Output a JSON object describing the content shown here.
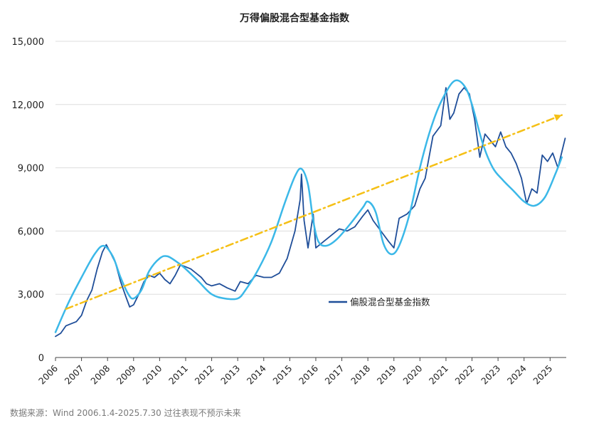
{
  "chart_data": {
    "type": "line",
    "title": "万得偏股混合型基金指数",
    "xlabel": "",
    "ylabel": "",
    "x_range": [
      2006.0,
      2025.62
    ],
    "ylim": [
      0,
      15000
    ],
    "y_ticks": [
      0,
      3000,
      6000,
      9000,
      12000,
      15000
    ],
    "y_tick_labels": [
      "0",
      "3,000",
      "6,000",
      "9,000",
      "12,000",
      "15,000"
    ],
    "x_ticks": [
      2006,
      2007,
      2008,
      2009,
      2010,
      2011,
      2012,
      2013,
      2014,
      2015,
      2016,
      2017,
      2018,
      2019,
      2020,
      2021,
      2022,
      2023,
      2024,
      2025
    ],
    "x_tick_labels": [
      "2006",
      "2007",
      "2008",
      "2009",
      "2010",
      "2011",
      "2012",
      "2013",
      "2014",
      "2015",
      "2016",
      "2017",
      "2018",
      "2019",
      "2020",
      "2021",
      "2022",
      "2023",
      "2024",
      "2025"
    ],
    "grid": "horizontal",
    "legend_position": "center-right",
    "series": [
      {
        "name": "偏股混合型基金指数",
        "color": "#1f4e99",
        "style": "solid",
        "points": [
          [
            2006.0,
            1000
          ],
          [
            2006.2,
            1150
          ],
          [
            2006.4,
            1500
          ],
          [
            2006.6,
            1600
          ],
          [
            2006.8,
            1700
          ],
          [
            2007.0,
            2000
          ],
          [
            2007.2,
            2700
          ],
          [
            2007.4,
            3200
          ],
          [
            2007.6,
            4200
          ],
          [
            2007.8,
            5000
          ],
          [
            2007.95,
            5350
          ],
          [
            2008.1,
            5000
          ],
          [
            2008.3,
            4500
          ],
          [
            2008.5,
            3600
          ],
          [
            2008.7,
            2900
          ],
          [
            2008.85,
            2400
          ],
          [
            2009.0,
            2500
          ],
          [
            2009.2,
            3000
          ],
          [
            2009.4,
            3600
          ],
          [
            2009.6,
            3900
          ],
          [
            2009.8,
            3800
          ],
          [
            2010.0,
            4000
          ],
          [
            2010.2,
            3700
          ],
          [
            2010.4,
            3500
          ],
          [
            2010.6,
            3900
          ],
          [
            2010.8,
            4400
          ],
          [
            2011.0,
            4300
          ],
          [
            2011.2,
            4200
          ],
          [
            2011.4,
            4000
          ],
          [
            2011.6,
            3800
          ],
          [
            2011.8,
            3500
          ],
          [
            2012.0,
            3400
          ],
          [
            2012.3,
            3500
          ],
          [
            2012.6,
            3300
          ],
          [
            2012.9,
            3150
          ],
          [
            2013.1,
            3600
          ],
          [
            2013.4,
            3500
          ],
          [
            2013.7,
            3900
          ],
          [
            2014.0,
            3800
          ],
          [
            2014.3,
            3800
          ],
          [
            2014.6,
            4000
          ],
          [
            2014.9,
            4700
          ],
          [
            2015.2,
            6000
          ],
          [
            2015.4,
            7500
          ],
          [
            2015.45,
            8700
          ],
          [
            2015.55,
            6500
          ],
          [
            2015.7,
            5200
          ],
          [
            2015.9,
            6800
          ],
          [
            2016.0,
            5200
          ],
          [
            2016.3,
            5500
          ],
          [
            2016.6,
            5800
          ],
          [
            2016.9,
            6100
          ],
          [
            2017.2,
            6000
          ],
          [
            2017.5,
            6200
          ],
          [
            2017.8,
            6700
          ],
          [
            2018.0,
            7000
          ],
          [
            2018.2,
            6500
          ],
          [
            2018.5,
            6000
          ],
          [
            2018.8,
            5500
          ],
          [
            2019.0,
            5200
          ],
          [
            2019.2,
            6600
          ],
          [
            2019.5,
            6800
          ],
          [
            2019.8,
            7200
          ],
          [
            2020.0,
            8000
          ],
          [
            2020.2,
            8500
          ],
          [
            2020.5,
            10500
          ],
          [
            2020.8,
            11000
          ],
          [
            2021.0,
            12800
          ],
          [
            2021.15,
            11300
          ],
          [
            2021.3,
            11600
          ],
          [
            2021.5,
            12500
          ],
          [
            2021.7,
            12800
          ],
          [
            2021.9,
            12500
          ],
          [
            2022.1,
            11300
          ],
          [
            2022.3,
            9500
          ],
          [
            2022.5,
            10600
          ],
          [
            2022.7,
            10300
          ],
          [
            2022.9,
            10000
          ],
          [
            2023.1,
            10700
          ],
          [
            2023.3,
            10000
          ],
          [
            2023.5,
            9700
          ],
          [
            2023.7,
            9200
          ],
          [
            2023.9,
            8500
          ],
          [
            2024.1,
            7300
          ],
          [
            2024.3,
            8000
          ],
          [
            2024.5,
            7800
          ],
          [
            2024.7,
            9600
          ],
          [
            2024.9,
            9300
          ],
          [
            2025.1,
            9700
          ],
          [
            2025.3,
            9000
          ],
          [
            2025.5,
            10000
          ],
          [
            2025.58,
            10400
          ]
        ]
      },
      {
        "name": "",
        "color": "#3bb8e8",
        "style": "solid-smooth",
        "points": [
          [
            2006.0,
            1200
          ],
          [
            2006.5,
            2600
          ],
          [
            2007.0,
            3800
          ],
          [
            2007.5,
            4900
          ],
          [
            2007.85,
            5300
          ],
          [
            2008.2,
            4800
          ],
          [
            2008.5,
            3800
          ],
          [
            2008.8,
            3000
          ],
          [
            2009.0,
            2800
          ],
          [
            2009.3,
            3200
          ],
          [
            2009.6,
            4100
          ],
          [
            2010.0,
            4700
          ],
          [
            2010.3,
            4800
          ],
          [
            2010.7,
            4500
          ],
          [
            2011.0,
            4200
          ],
          [
            2011.5,
            3600
          ],
          [
            2012.0,
            3000
          ],
          [
            2012.5,
            2800
          ],
          [
            2013.0,
            2800
          ],
          [
            2013.3,
            3200
          ],
          [
            2013.8,
            4200
          ],
          [
            2014.3,
            5500
          ],
          [
            2014.8,
            7300
          ],
          [
            2015.2,
            8600
          ],
          [
            2015.45,
            8950
          ],
          [
            2015.7,
            8200
          ],
          [
            2015.9,
            6500
          ],
          [
            2016.1,
            5500
          ],
          [
            2016.4,
            5300
          ],
          [
            2016.8,
            5600
          ],
          [
            2017.3,
            6300
          ],
          [
            2017.8,
            7100
          ],
          [
            2018.0,
            7400
          ],
          [
            2018.3,
            6900
          ],
          [
            2018.6,
            5400
          ],
          [
            2018.9,
            4900
          ],
          [
            2019.2,
            5300
          ],
          [
            2019.6,
            6800
          ],
          [
            2020.0,
            9000
          ],
          [
            2020.4,
            10800
          ],
          [
            2020.8,
            12100
          ],
          [
            2021.3,
            13100
          ],
          [
            2021.7,
            12900
          ],
          [
            2022.0,
            12000
          ],
          [
            2022.4,
            10200
          ],
          [
            2022.8,
            9000
          ],
          [
            2023.2,
            8400
          ],
          [
            2023.6,
            7900
          ],
          [
            2024.0,
            7400
          ],
          [
            2024.4,
            7200
          ],
          [
            2024.8,
            7600
          ],
          [
            2025.2,
            8700
          ],
          [
            2025.45,
            9500
          ]
        ]
      },
      {
        "name": "",
        "color": "#f5c016",
        "style": "dash-dot",
        "points": [
          [
            2006.4,
            2300
          ],
          [
            2025.45,
            11500
          ]
        ]
      }
    ],
    "annotations": [
      {
        "text": "数据来源：Wind 2006.1.4-2025.7.30 过往表现不预示未来",
        "position": "bottom-left"
      }
    ]
  }
}
